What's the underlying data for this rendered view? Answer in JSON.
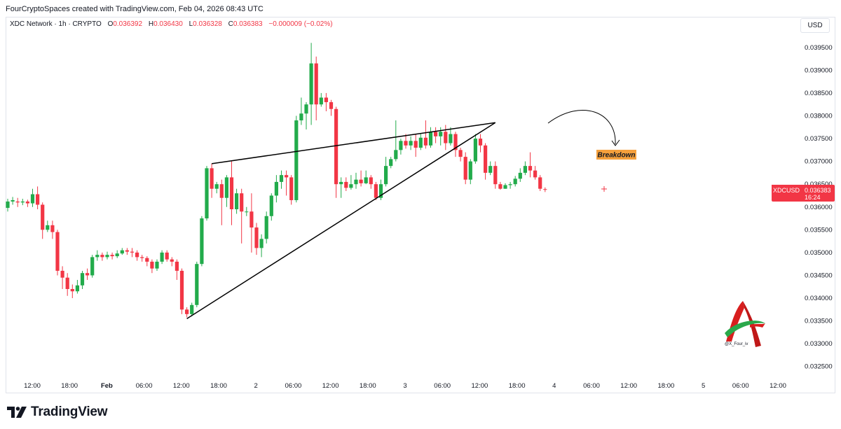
{
  "header": {
    "creator_line": "FourCryptoSpaces created with TradingView.com, Feb 04, 2026 08:43 UTC"
  },
  "legend": {
    "symbol": "XDC Network · 1h · CRYPTO",
    "open_label": "O",
    "open": "0.036392",
    "high_label": "H",
    "high": "0.036430",
    "low_label": "L",
    "low": "0.036328",
    "close_label": "C",
    "close": "0.036383",
    "change": "−0.000009 (−0.02%)"
  },
  "currency_button": "USD",
  "price_tag": {
    "symbol": "XDCUSD",
    "price": "0.036383",
    "countdown": "16:24"
  },
  "annotation": {
    "label": "Breakdown"
  },
  "brand": {
    "name": "TradingView"
  },
  "watermark": {
    "handle": "@X_Four_iv"
  },
  "colors": {
    "up": "#089981",
    "up_body": "#22ab4b",
    "down": "#f23645",
    "line": "#000000",
    "label_bg": "#f5a03c"
  },
  "chart_data": {
    "type": "candlestick",
    "title": "",
    "ylim": [
      0.03225,
      0.03985
    ],
    "y_ticks": [
      "0.032500",
      "0.033000",
      "0.033500",
      "0.034000",
      "0.034500",
      "0.035000",
      "0.035500",
      "0.036000",
      "0.036500",
      "0.037000",
      "0.037500",
      "0.038000",
      "0.038500",
      "0.039000",
      "0.039500"
    ],
    "x_ticks": [
      "12:00",
      "18:00",
      "Feb",
      "06:00",
      "12:00",
      "18:00",
      "2",
      "06:00",
      "12:00",
      "18:00",
      "3",
      "06:00",
      "12:00",
      "18:00",
      "4",
      "06:00",
      "12:00",
      "18:00",
      "5",
      "06:00",
      "12:00"
    ],
    "candles": [
      [
        0.03598,
        0.03612,
        0.0359,
        0.03618
      ],
      [
        0.03612,
        0.03615,
        0.03605,
        0.03622
      ],
      [
        0.03612,
        0.0361,
        0.036,
        0.0362
      ],
      [
        0.0361,
        0.03612,
        0.03604,
        0.03618
      ],
      [
        0.03612,
        0.03608,
        0.036,
        0.03616
      ],
      [
        0.03608,
        0.03628,
        0.036,
        0.0364
      ],
      [
        0.03628,
        0.03605,
        0.03595,
        0.03645
      ],
      [
        0.03605,
        0.0355,
        0.0353,
        0.0361
      ],
      [
        0.0355,
        0.0356,
        0.03545,
        0.0357
      ],
      [
        0.0356,
        0.03545,
        0.0353,
        0.0357
      ],
      [
        0.03545,
        0.0346,
        0.0345,
        0.0355
      ],
      [
        0.0346,
        0.03445,
        0.0342,
        0.0347
      ],
      [
        0.03445,
        0.0342,
        0.03405,
        0.03455
      ],
      [
        0.0342,
        0.03415,
        0.034,
        0.0343
      ],
      [
        0.03415,
        0.03428,
        0.0341,
        0.0344
      ],
      [
        0.03428,
        0.03455,
        0.0342,
        0.0346
      ],
      [
        0.03455,
        0.0345,
        0.0344,
        0.03465
      ],
      [
        0.0345,
        0.0349,
        0.03445,
        0.03495
      ],
      [
        0.0349,
        0.03495,
        0.03482,
        0.03505
      ],
      [
        0.03495,
        0.0349,
        0.03482,
        0.035
      ],
      [
        0.0349,
        0.03495,
        0.03485,
        0.03502
      ],
      [
        0.03495,
        0.03492,
        0.03485,
        0.035
      ],
      [
        0.03492,
        0.03498,
        0.03488,
        0.03505
      ],
      [
        0.03498,
        0.03505,
        0.03495,
        0.0351
      ],
      [
        0.03505,
        0.03502,
        0.03495,
        0.0351
      ],
      [
        0.03502,
        0.035,
        0.0349,
        0.0351
      ],
      [
        0.035,
        0.0349,
        0.03482,
        0.03505
      ],
      [
        0.0349,
        0.03488,
        0.0348,
        0.03495
      ],
      [
        0.03488,
        0.0348,
        0.0347,
        0.03492
      ],
      [
        0.0348,
        0.03465,
        0.03455,
        0.03485
      ],
      [
        0.03465,
        0.0348,
        0.0346,
        0.03485
      ],
      [
        0.0348,
        0.035,
        0.03475,
        0.03505
      ],
      [
        0.035,
        0.03485,
        0.0348,
        0.03505
      ],
      [
        0.03485,
        0.0348,
        0.0347,
        0.0349
      ],
      [
        0.0348,
        0.0346,
        0.0344,
        0.03485
      ],
      [
        0.0346,
        0.03375,
        0.03365,
        0.03465
      ],
      [
        0.03375,
        0.03365,
        0.03358,
        0.0338
      ],
      [
        0.03365,
        0.03385,
        0.0336,
        0.0339
      ],
      [
        0.03385,
        0.03475,
        0.0338,
        0.0348
      ],
      [
        0.03475,
        0.03575,
        0.0347,
        0.0358
      ],
      [
        0.03575,
        0.03685,
        0.0357,
        0.0369
      ],
      [
        0.03685,
        0.0364,
        0.0362,
        0.03695
      ],
      [
        0.0364,
        0.0365,
        0.0363,
        0.03655
      ],
      [
        0.0365,
        0.0362,
        0.0356,
        0.0366
      ],
      [
        0.0362,
        0.03665,
        0.036,
        0.0367
      ],
      [
        0.03665,
        0.03595,
        0.0356,
        0.037
      ],
      [
        0.03595,
        0.0363,
        0.03585,
        0.0364
      ],
      [
        0.0363,
        0.0359,
        0.0352,
        0.0364
      ],
      [
        0.0359,
        0.0359,
        0.0358,
        0.036
      ],
      [
        0.0359,
        0.03555,
        0.035,
        0.0363
      ],
      [
        0.03555,
        0.0351,
        0.03495,
        0.03565
      ],
      [
        0.0351,
        0.0353,
        0.0349,
        0.0354
      ],
      [
        0.0353,
        0.0358,
        0.0352,
        0.0359
      ],
      [
        0.0358,
        0.03625,
        0.0357,
        0.0363
      ],
      [
        0.03625,
        0.03655,
        0.0361,
        0.0367
      ],
      [
        0.03655,
        0.0367,
        0.0364,
        0.0368
      ],
      [
        0.0367,
        0.03665,
        0.03625,
        0.0368
      ],
      [
        0.03665,
        0.03615,
        0.03605,
        0.0367
      ],
      [
        0.03615,
        0.0379,
        0.0361,
        0.038
      ],
      [
        0.0379,
        0.03805,
        0.0378,
        0.0384
      ],
      [
        0.03805,
        0.03825,
        0.0377,
        0.0383
      ],
      [
        0.03825,
        0.03915,
        0.0378,
        0.0396
      ],
      [
        0.03915,
        0.03825,
        0.0379,
        0.0393
      ],
      [
        0.03825,
        0.0384,
        0.0382,
        0.0385
      ],
      [
        0.0384,
        0.0383,
        0.0381,
        0.0385
      ],
      [
        0.0383,
        0.03815,
        0.038,
        0.03835
      ],
      [
        0.03815,
        0.0365,
        0.0362,
        0.0382
      ],
      [
        0.0365,
        0.03655,
        0.0362,
        0.03665
      ],
      [
        0.03655,
        0.03642,
        0.03635,
        0.03665
      ],
      [
        0.03642,
        0.0365,
        0.03638,
        0.0367
      ],
      [
        0.0365,
        0.0366,
        0.0364,
        0.03675
      ],
      [
        0.0366,
        0.03652,
        0.03645,
        0.0368
      ],
      [
        0.03652,
        0.03665,
        0.0365,
        0.0368
      ],
      [
        0.03665,
        0.0365,
        0.0364,
        0.0367
      ],
      [
        0.0365,
        0.0362,
        0.03615,
        0.03655
      ],
      [
        0.0362,
        0.0365,
        0.03615,
        0.0366
      ],
      [
        0.0365,
        0.0369,
        0.03645,
        0.0371
      ],
      [
        0.0369,
        0.03705,
        0.03685,
        0.0371
      ],
      [
        0.03705,
        0.03725,
        0.037,
        0.0379
      ],
      [
        0.03725,
        0.03745,
        0.03715,
        0.0375
      ],
      [
        0.03745,
        0.03735,
        0.03728,
        0.0376
      ],
      [
        0.03735,
        0.03745,
        0.03725,
        0.03755
      ],
      [
        0.03745,
        0.0373,
        0.0371,
        0.0376
      ],
      [
        0.0373,
        0.03752,
        0.03725,
        0.0376
      ],
      [
        0.03752,
        0.03735,
        0.03728,
        0.0379
      ],
      [
        0.03735,
        0.03765,
        0.0373,
        0.03775
      ],
      [
        0.03765,
        0.03755,
        0.0374,
        0.03775
      ],
      [
        0.03755,
        0.03765,
        0.03735,
        0.03775
      ],
      [
        0.03765,
        0.0374,
        0.03725,
        0.0378
      ],
      [
        0.0374,
        0.0376,
        0.03735,
        0.03775
      ],
      [
        0.0376,
        0.03725,
        0.0371,
        0.03765
      ],
      [
        0.03725,
        0.0371,
        0.037,
        0.0373
      ],
      [
        0.0371,
        0.0366,
        0.0365,
        0.0372
      ],
      [
        0.0366,
        0.037,
        0.0365,
        0.03705
      ],
      [
        0.037,
        0.0375,
        0.03695,
        0.0376
      ],
      [
        0.0375,
        0.03735,
        0.0372,
        0.0376
      ],
      [
        0.03735,
        0.03675,
        0.0366,
        0.0374
      ],
      [
        0.03675,
        0.0369,
        0.0367,
        0.037
      ],
      [
        0.0369,
        0.0365,
        0.0364,
        0.037
      ],
      [
        0.0365,
        0.0364,
        0.03638,
        0.03655
      ],
      [
        0.0364,
        0.03648,
        0.0364,
        0.03652
      ],
      [
        0.03648,
        0.0365,
        0.0364,
        0.03655
      ],
      [
        0.0365,
        0.03662,
        0.03645,
        0.03668
      ],
      [
        0.03662,
        0.03675,
        0.03655,
        0.03685
      ],
      [
        0.03675,
        0.0369,
        0.0367,
        0.037
      ],
      [
        0.0369,
        0.0368,
        0.03665,
        0.0372
      ],
      [
        0.0368,
        0.03665,
        0.0366,
        0.0369
      ],
      [
        0.03665,
        0.0364,
        0.03635,
        0.0367
      ],
      [
        0.036392,
        0.036383,
        0.036328,
        0.03643
      ]
    ],
    "trendlines": [
      {
        "from": [
          36,
          0.03355
        ],
        "to": [
          98,
          0.03785
        ]
      },
      {
        "from": [
          41,
          0.03695
        ],
        "to": [
          98,
          0.03785
        ]
      }
    ],
    "last_price": 0.036383
  }
}
